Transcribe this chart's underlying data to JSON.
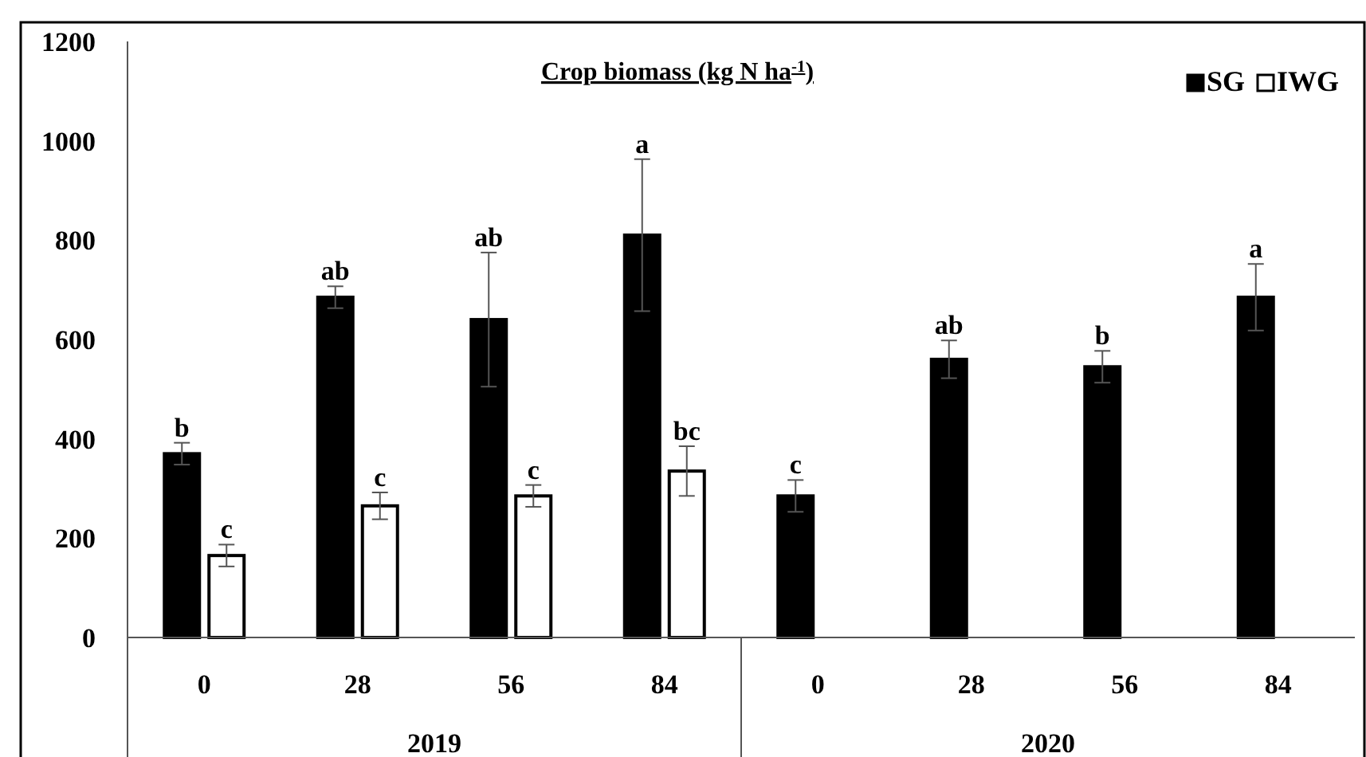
{
  "chart_data": {
    "type": "bar",
    "title": "Crop biomass (kg N ha$^{-1}$)",
    "categories": [
      "0",
      "28",
      "56",
      "84",
      "0",
      "28",
      "56",
      "84"
    ],
    "series": [
      {
        "name": "SG",
        "color": "#000000",
        "values": [
          370,
          685,
          640,
          810,
          285,
          560,
          545,
          685
        ],
        "errors": [
          22,
          22,
          135,
          153,
          32,
          38,
          32,
          67
        ],
        "value_labels": [
          "b",
          "ab",
          "ab",
          "a",
          "c",
          "ab",
          "b",
          "a"
        ]
      },
      {
        "name": "IWG",
        "color": "#ffffff",
        "values": [
          165,
          265,
          285,
          335,
          null,
          null,
          null,
          null
        ],
        "errors": [
          22,
          27,
          22,
          50,
          null,
          null,
          null,
          null
        ],
        "value_labels": [
          "c",
          "c",
          "c",
          "bc",
          null,
          null,
          null,
          null
        ]
      }
    ],
    "annotations": [
      "2019",
      "2020"
    ],
    "ylim": [
      0,
      1200
    ],
    "yticks": [
      0,
      200,
      400,
      600,
      800,
      1000,
      1200
    ],
    "grid": false,
    "legend": "top right"
  }
}
